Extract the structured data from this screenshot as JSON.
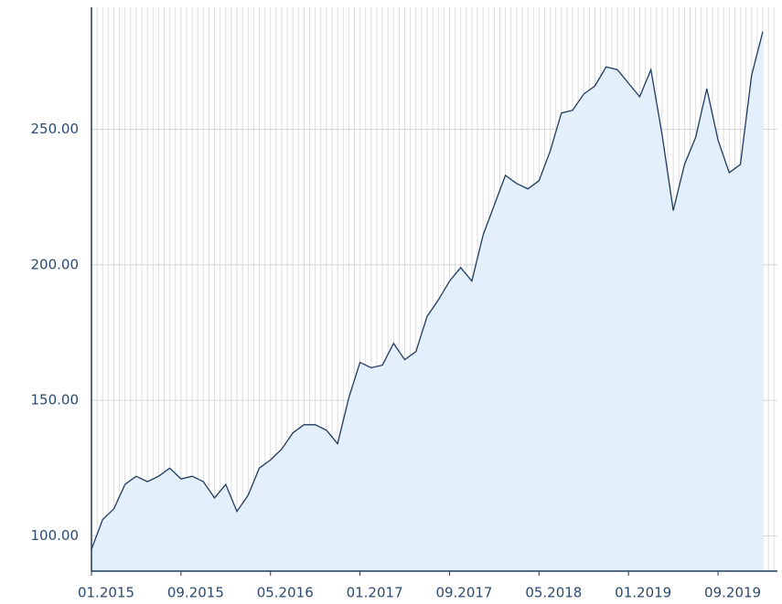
{
  "chart_data": {
    "type": "area",
    "categories": [
      "01.2015",
      null,
      null,
      null,
      null,
      null,
      null,
      null,
      "09.2015",
      null,
      null,
      null,
      null,
      null,
      null,
      null,
      "05.2016",
      null,
      null,
      null,
      null,
      null,
      null,
      null,
      "01.2017",
      null,
      null,
      null,
      null,
      null,
      null,
      null,
      "09.2017",
      null,
      null,
      null,
      null,
      null,
      null,
      null,
      "05.2018",
      null,
      null,
      null,
      null,
      null,
      null,
      null,
      "01.2019",
      null,
      null,
      null,
      null,
      null,
      null,
      null,
      "09.2019",
      null,
      null,
      null,
      null
    ],
    "values": [
      95,
      106,
      110,
      119,
      122,
      120,
      122,
      125,
      121,
      122,
      120,
      114,
      119,
      109,
      115,
      125,
      128,
      132,
      138,
      141,
      141,
      139,
      134,
      151,
      164,
      162,
      163,
      171,
      165,
      168,
      181,
      187,
      194,
      199,
      194,
      211,
      222,
      233,
      230,
      228,
      231,
      242,
      256,
      257,
      263,
      266,
      273,
      272,
      267,
      262,
      272,
      248,
      220,
      237,
      247,
      265,
      246,
      234,
      237,
      270,
      286
    ],
    "color": "#1f3a5f",
    "fill": "#e3effa",
    "ylim": [
      87,
      295
    ],
    "yticks": [
      {
        "value": 100,
        "label": "100.00"
      },
      {
        "value": 150,
        "label": "150.00"
      },
      {
        "value": 200,
        "label": "200.00"
      },
      {
        "value": 250,
        "label": "250.00"
      }
    ],
    "grid": true
  }
}
